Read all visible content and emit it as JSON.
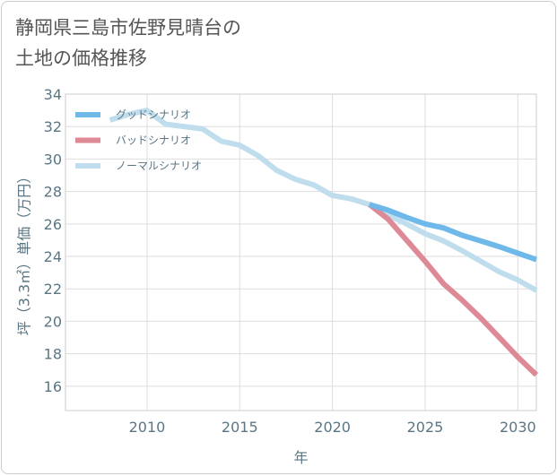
{
  "header": {
    "title_line1": "静岡県三島市佐野見晴台の",
    "title_line2": "土地の価格推移"
  },
  "chart_data": {
    "type": "line",
    "title": "静岡県三島市佐野見晴台の土地の価格推移",
    "xlabel": "年",
    "ylabel": "坪（3.3㎡）単価（万円）",
    "xlim": [
      2005.6,
      2031
    ],
    "ylim": [
      14.5,
      34
    ],
    "xticks": [
      2010,
      2015,
      2020,
      2025,
      2030
    ],
    "yticks": [
      16,
      18,
      20,
      22,
      24,
      26,
      28,
      30,
      32,
      34
    ],
    "grid": true,
    "legend_position": "top-left",
    "series": [
      {
        "name": "グッドシナリオ",
        "color": "#6fb8ea",
        "x": [
          2022,
          2023,
          2024,
          2025,
          2026,
          2027,
          2028,
          2029,
          2030,
          2031
        ],
        "y": [
          27.2,
          26.85,
          26.4,
          26.0,
          25.75,
          25.3,
          24.95,
          24.6,
          24.2,
          23.8
        ]
      },
      {
        "name": "バッドシナリオ",
        "color": "#dd8a96",
        "x": [
          2022,
          2023,
          2024,
          2025,
          2026,
          2027,
          2028,
          2029,
          2030,
          2031
        ],
        "y": [
          27.2,
          26.3,
          25.0,
          23.7,
          22.3,
          21.3,
          20.2,
          19.0,
          17.8,
          16.7
        ]
      },
      {
        "name": "ノーマルシナリオ",
        "color": "#c0dded",
        "x": [
          2008,
          2009,
          2010,
          2011,
          2012,
          2013,
          2014,
          2015,
          2016,
          2017,
          2018,
          2019,
          2020,
          2021,
          2022,
          2023,
          2024,
          2025,
          2026,
          2027,
          2028,
          2029,
          2030,
          2031
        ],
        "y": [
          32.4,
          32.75,
          33.0,
          32.15,
          32.0,
          31.85,
          31.1,
          30.85,
          30.2,
          29.3,
          28.75,
          28.4,
          27.75,
          27.55,
          27.2,
          26.55,
          26.0,
          25.4,
          24.95,
          24.35,
          23.7,
          23.05,
          22.55,
          21.9
        ]
      }
    ]
  }
}
